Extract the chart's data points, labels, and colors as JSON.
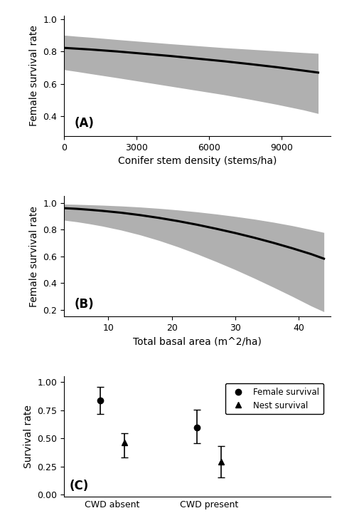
{
  "panel_A": {
    "x_range": [
      0,
      11000
    ],
    "x_ticks": [
      0,
      3000,
      6000,
      9000
    ],
    "y_range": [
      0.28,
      1.02
    ],
    "y_ticks": [
      0.4,
      0.6,
      0.8,
      1.0
    ],
    "xlabel": "Conifer stem density (stems/ha)",
    "ylabel": "Female survival rate",
    "label": "(A)",
    "line_x": [
      0,
      550,
      1100,
      2200,
      3300,
      4400,
      5500,
      6600,
      7700,
      8800,
      9900,
      10500
    ],
    "line_y": [
      0.822,
      0.817,
      0.812,
      0.8,
      0.786,
      0.772,
      0.756,
      0.74,
      0.722,
      0.703,
      0.682,
      0.67
    ],
    "upper_ci": [
      0.9,
      0.893,
      0.887,
      0.873,
      0.86,
      0.847,
      0.835,
      0.823,
      0.813,
      0.803,
      0.793,
      0.788
    ],
    "lower_ci": [
      0.688,
      0.676,
      0.663,
      0.638,
      0.612,
      0.586,
      0.56,
      0.534,
      0.505,
      0.474,
      0.44,
      0.418
    ]
  },
  "panel_B": {
    "x_range": [
      3,
      45
    ],
    "x_ticks": [
      10,
      20,
      30,
      40
    ],
    "y_range": [
      0.15,
      1.05
    ],
    "y_ticks": [
      0.2,
      0.4,
      0.6,
      0.8,
      1.0
    ],
    "xlabel": "Total basal area (m^2/ha)",
    "ylabel": "Female survival rate",
    "label": "(B)",
    "line_x": [
      3,
      5,
      7,
      9,
      12,
      15,
      18,
      21,
      24,
      27,
      30,
      33,
      36,
      39,
      42,
      44
    ],
    "line_y": [
      0.96,
      0.955,
      0.948,
      0.94,
      0.926,
      0.908,
      0.887,
      0.863,
      0.836,
      0.806,
      0.774,
      0.739,
      0.701,
      0.66,
      0.616,
      0.582
    ],
    "upper_ci": [
      0.99,
      0.988,
      0.985,
      0.982,
      0.976,
      0.968,
      0.958,
      0.946,
      0.932,
      0.916,
      0.898,
      0.878,
      0.855,
      0.829,
      0.799,
      0.778
    ],
    "lower_ci": [
      0.87,
      0.858,
      0.843,
      0.826,
      0.796,
      0.76,
      0.718,
      0.67,
      0.617,
      0.56,
      0.5,
      0.436,
      0.369,
      0.3,
      0.228,
      0.185
    ]
  },
  "panel_C": {
    "x_labels": [
      "CWD absent",
      "CWD present"
    ],
    "y_range": [
      -0.02,
      1.05
    ],
    "y_ticks": [
      0.0,
      0.25,
      0.5,
      0.75,
      1.0
    ],
    "ylabel": "Survival rate",
    "label": "(C)",
    "female_survival": [
      0.835,
      0.595
    ],
    "female_ci_upper": [
      0.96,
      0.755
    ],
    "female_ci_lower": [
      0.72,
      0.46
    ],
    "nest_survival": [
      0.465,
      0.295
    ],
    "nest_ci_upper": [
      0.545,
      0.435
    ],
    "nest_ci_lower": [
      0.33,
      0.155
    ],
    "legend_labels": [
      "Female survival",
      "Nest survival"
    ]
  },
  "ci_color": "#b0b0b0",
  "line_color": "#000000",
  "line_width": 2.2,
  "tick_fontsize": 9,
  "label_fontsize": 10,
  "panel_label_fontsize": 12
}
